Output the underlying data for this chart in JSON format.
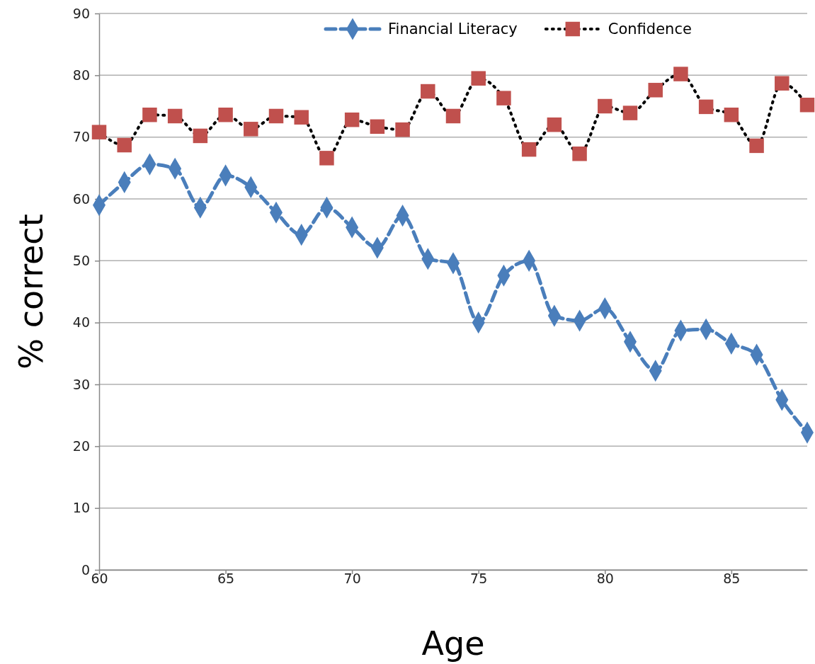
{
  "chart_data": {
    "type": "line",
    "xlabel": "Age",
    "ylabel": "% correct",
    "x": [
      60,
      61,
      62,
      63,
      64,
      65,
      66,
      67,
      68,
      69,
      70,
      71,
      72,
      73,
      74,
      75,
      76,
      77,
      78,
      79,
      80,
      81,
      82,
      83,
      84,
      85,
      86,
      87,
      88
    ],
    "series": [
      {
        "name": "Financial Literacy",
        "color": "#4a7ebb",
        "marker": "diamond",
        "line_style": "dashed",
        "values": [
          59.0,
          62.7,
          65.6,
          64.9,
          58.6,
          63.8,
          61.9,
          57.8,
          54.2,
          58.6,
          55.4,
          52.1,
          57.3,
          50.3,
          49.6,
          40.0,
          47.6,
          50.0,
          41.1,
          40.3,
          42.3,
          36.9,
          32.2,
          38.7,
          38.9,
          36.6,
          34.8,
          27.5,
          22.2
        ]
      },
      {
        "name": "Confidence",
        "color": "#c0504d",
        "marker": "square",
        "line_style": "dotted",
        "values": [
          70.8,
          68.7,
          73.6,
          73.4,
          70.2,
          73.6,
          71.3,
          73.4,
          73.2,
          66.6,
          72.8,
          71.7,
          71.2,
          77.4,
          73.4,
          79.5,
          76.3,
          68.0,
          72.0,
          67.3,
          75.0,
          73.9,
          77.6,
          80.2,
          74.9,
          73.6,
          68.6,
          78.7,
          75.2
        ]
      }
    ],
    "xlim": [
      60,
      88
    ],
    "xticks": [
      60,
      65,
      70,
      75,
      80,
      85
    ],
    "ylim": [
      0,
      90
    ],
    "yticks": [
      0,
      10,
      20,
      30,
      40,
      50,
      60,
      70,
      80,
      90
    ],
    "grid": "y",
    "legend": "top"
  }
}
